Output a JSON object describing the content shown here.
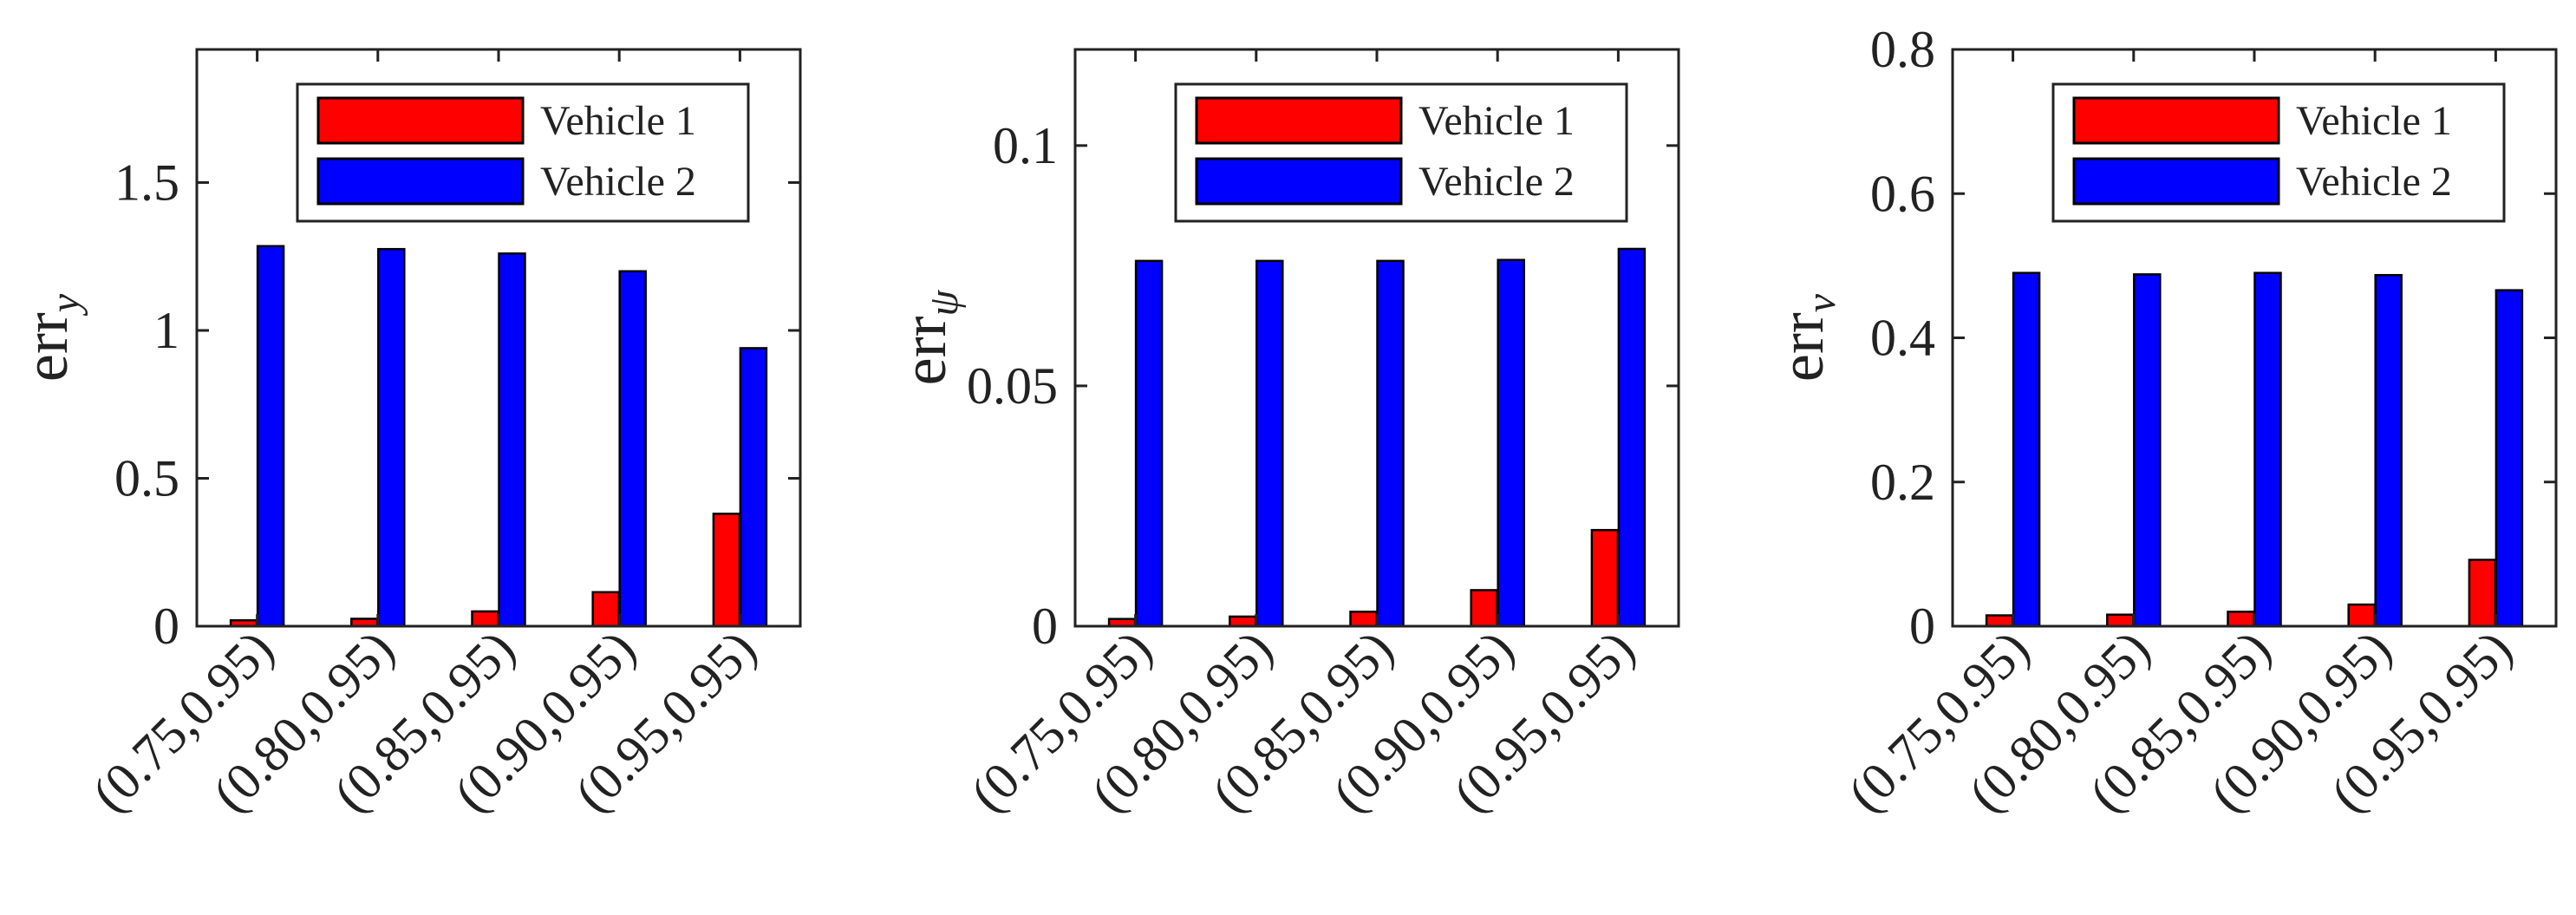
{
  "chart_data": [
    {
      "type": "bar",
      "ylabel": "err",
      "ylabel_subscript": "y",
      "categories": [
        "(0.75,0.95)",
        "(0.80,0.95)",
        "(0.85,0.95)",
        "(0.90,0.95)",
        "(0.95,0.95)"
      ],
      "series": [
        {
          "name": "Vehicle 1",
          "color": "#ff0000",
          "values": [
            0.02,
            0.025,
            0.05,
            0.115,
            0.38
          ]
        },
        {
          "name": "Vehicle 2",
          "color": "#0000ff",
          "values": [
            1.285,
            1.275,
            1.26,
            1.2,
            0.94
          ]
        }
      ],
      "ylim": [
        0,
        1.95
      ],
      "yticks": [
        0,
        0.5,
        1,
        1.5
      ],
      "ytick_labels": [
        "0",
        "0.5",
        "1",
        "1.5"
      ],
      "legend": "top-right",
      "grid": false
    },
    {
      "type": "bar",
      "ylabel": "err",
      "ylabel_subscript": "ψ",
      "categories": [
        "(0.75,0.95)",
        "(0.80,0.95)",
        "(0.85,0.95)",
        "(0.90,0.95)",
        "(0.95,0.95)"
      ],
      "series": [
        {
          "name": "Vehicle 1",
          "color": "#ff0000",
          "values": [
            0.0015,
            0.002,
            0.003,
            0.0075,
            0.02
          ]
        },
        {
          "name": "Vehicle 2",
          "color": "#0000ff",
          "values": [
            0.076,
            0.076,
            0.076,
            0.0762,
            0.0785
          ]
        }
      ],
      "ylim": [
        0,
        0.12
      ],
      "yticks": [
        0,
        0.05,
        0.1
      ],
      "ytick_labels": [
        "0",
        "0.05",
        "0.1"
      ],
      "legend": "top-right",
      "grid": false
    },
    {
      "type": "bar",
      "ylabel": "err",
      "ylabel_subscript": "v",
      "categories": [
        "(0.75,0.95)",
        "(0.80,0.95)",
        "(0.85,0.95)",
        "(0.90,0.95)",
        "(0.95,0.95)"
      ],
      "series": [
        {
          "name": "Vehicle 1",
          "color": "#ff0000",
          "values": [
            0.015,
            0.016,
            0.02,
            0.03,
            0.092
          ]
        },
        {
          "name": "Vehicle 2",
          "color": "#0000ff",
          "values": [
            0.49,
            0.488,
            0.49,
            0.487,
            0.466
          ]
        }
      ],
      "ylim": [
        0,
        0.8
      ],
      "yticks": [
        0,
        0.2,
        0.4,
        0.6,
        0.8
      ],
      "ytick_labels": [
        "0",
        "0.2",
        "0.4",
        "0.6",
        "0.8"
      ],
      "legend": "top-right",
      "grid": false
    }
  ]
}
